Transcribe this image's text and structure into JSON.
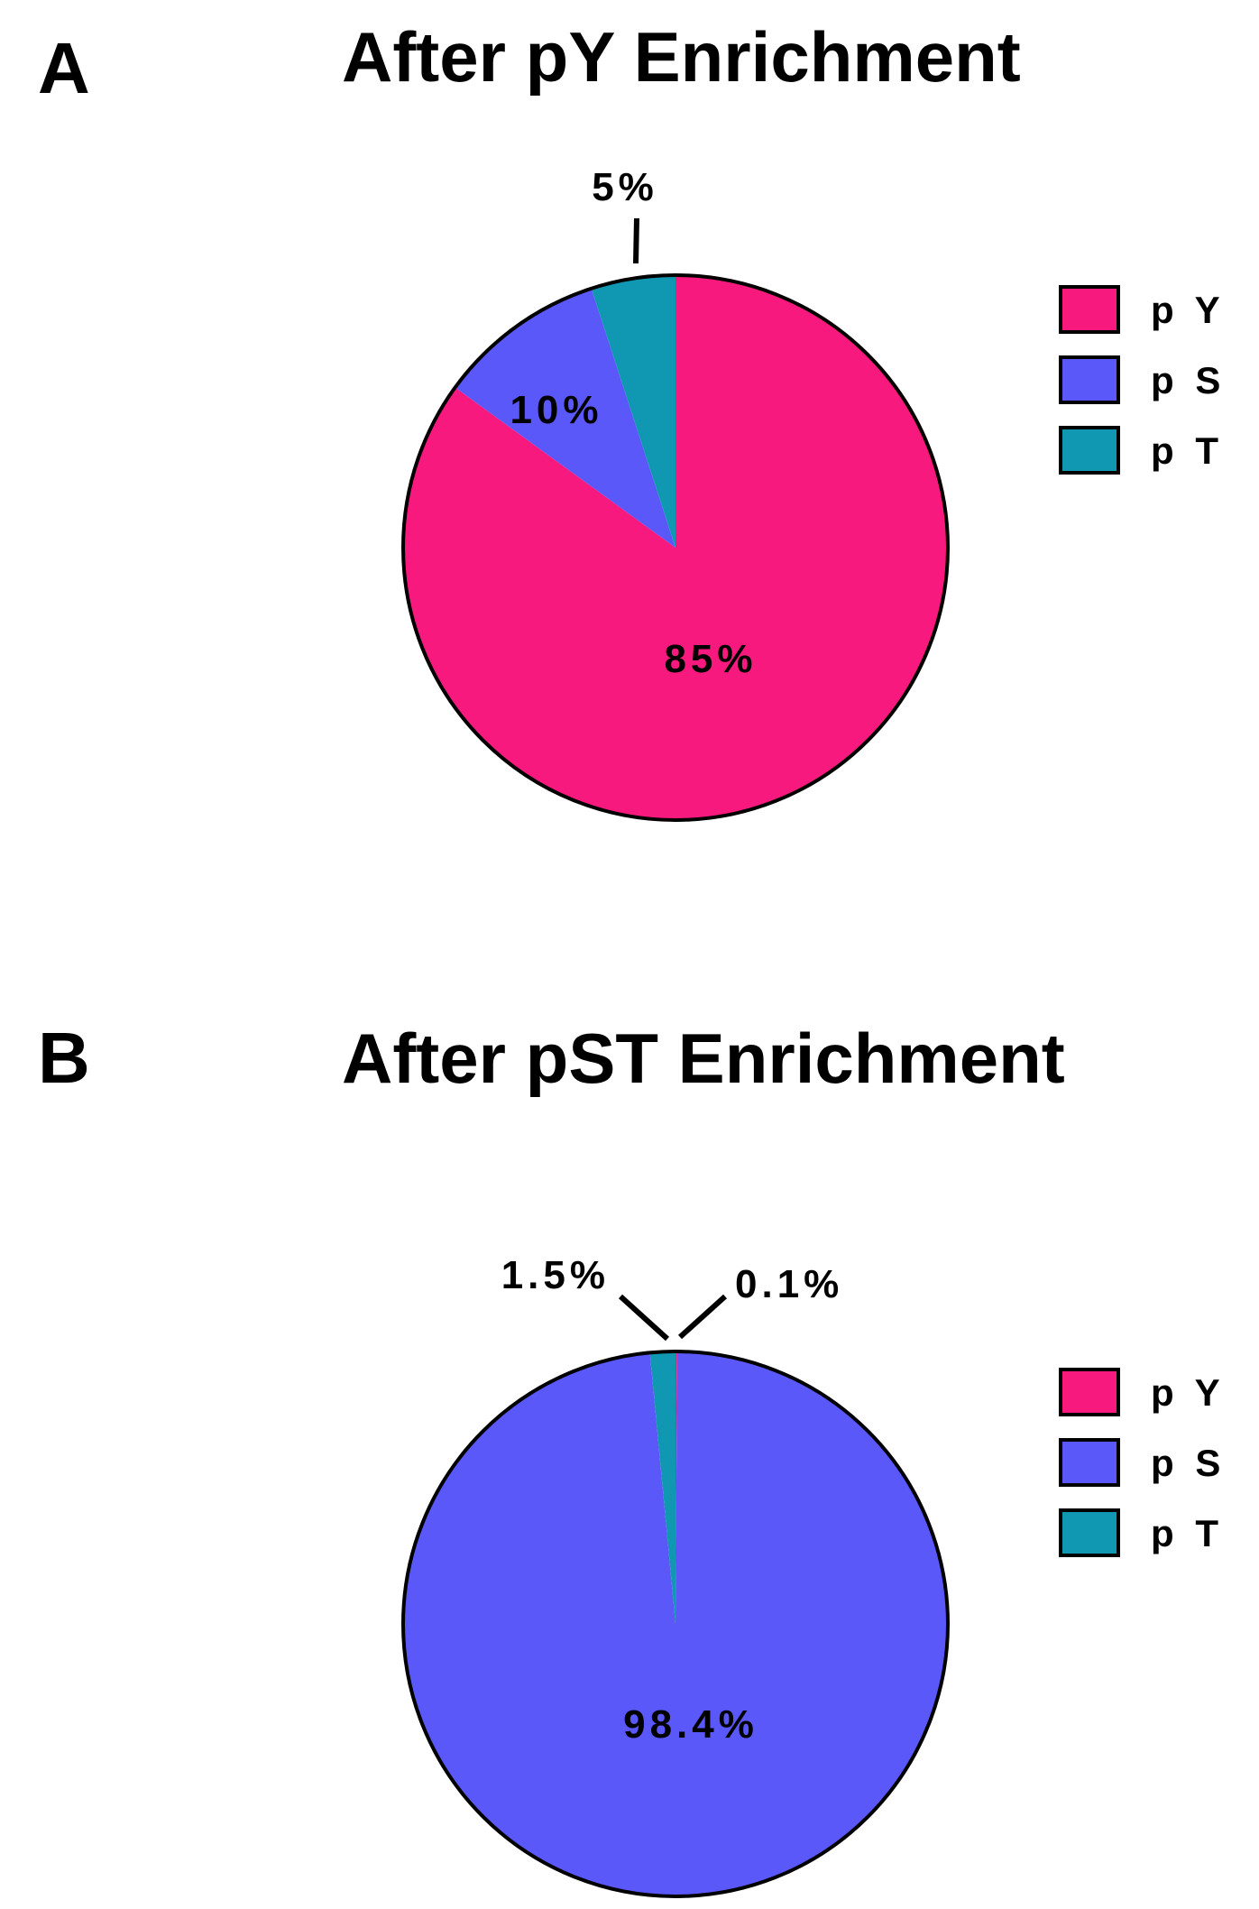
{
  "chart_data": [
    {
      "type": "pie",
      "panel": "A",
      "title": "After pY Enrichment",
      "categories": [
        "pY",
        "pS",
        "pT"
      ],
      "values": [
        85,
        10,
        5
      ],
      "slice_labels": [
        "85%",
        "10%",
        "5%"
      ],
      "colors": [
        "#F8197E",
        "#5A58F9",
        "#1098B3"
      ],
      "legend": [
        "p Y",
        "p S",
        "p T"
      ],
      "legend_position": "right"
    },
    {
      "type": "pie",
      "panel": "B",
      "title": "After pST Enrichment",
      "categories": [
        "pY",
        "pS",
        "pT"
      ],
      "values": [
        0.1,
        98.4,
        1.5
      ],
      "slice_labels": [
        "0.1%",
        "98.4%",
        "1.5%"
      ],
      "colors": [
        "#F8197E",
        "#5A58F9",
        "#1098B3"
      ],
      "legend": [
        "p Y",
        "p S",
        "p T"
      ],
      "legend_position": "right"
    }
  ]
}
